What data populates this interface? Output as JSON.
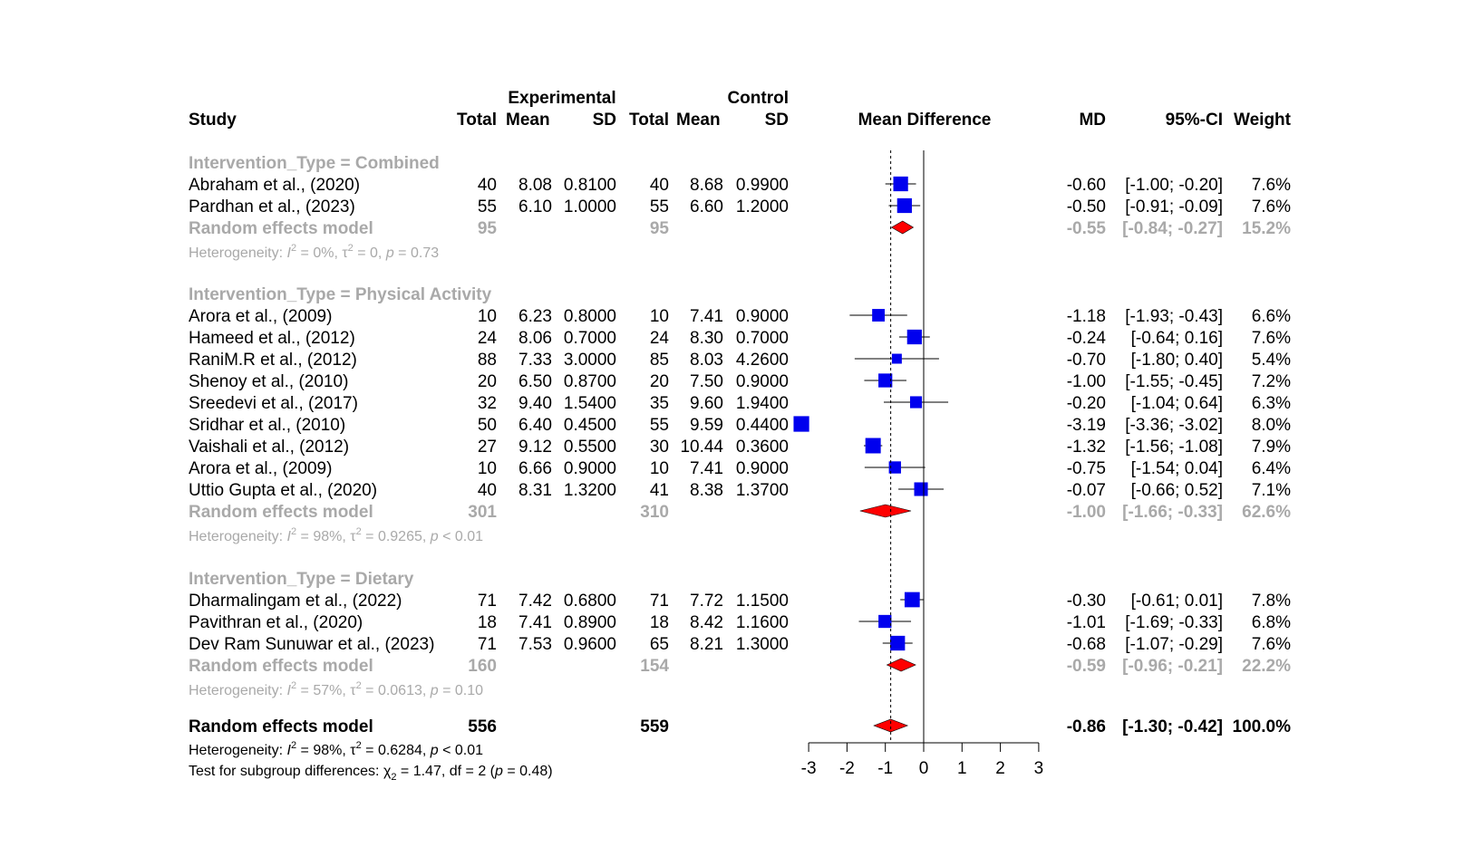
{
  "header": {
    "group_exp": "Experimental",
    "group_ctl": "Control",
    "cols": {
      "study": "Study",
      "total_e": "Total",
      "mean_e": "Mean",
      "sd_e": "SD",
      "total_c": "Total",
      "mean_c": "Mean",
      "sd_c": "SD",
      "effect": "Mean Difference",
      "md": "MD",
      "ci": "95%-CI",
      "weight": "Weight"
    }
  },
  "colors": {
    "square": "#0000ee",
    "diamond": "#ff0000",
    "subgroup_text": "#a9a9a9",
    "text": "#000000"
  },
  "chart_data": {
    "type": "forest",
    "xlim": [
      -3,
      3
    ],
    "xticks": [
      "-3",
      "-2",
      "-1",
      "0",
      "1",
      "2",
      "3"
    ],
    "null_line": 0,
    "overall_line": -0.86,
    "subgroups": [
      {
        "label": "Intervention_Type = Combined",
        "studies": [
          {
            "name": "Abraham et al., (2020)",
            "te": "40",
            "me": "8.08",
            "se": "0.8100",
            "tc": "40",
            "mc": "8.68",
            "sc": "0.9900",
            "md": -0.6,
            "lo": -1.0,
            "hi": -0.2,
            "md_text": "-0.60",
            "ci_text": "[-1.00; -0.20]",
            "w_text": "7.6%",
            "w": 7.6
          },
          {
            "name": "Pardhan et al., (2023)",
            "te": "55",
            "me": "6.10",
            "se": "1.0000",
            "tc": "55",
            "mc": "6.60",
            "sc": "1.2000",
            "md": -0.5,
            "lo": -0.91,
            "hi": -0.09,
            "md_text": "-0.50",
            "ci_text": "[-0.91; -0.09]",
            "w_text": "7.6%",
            "w": 7.6
          }
        ],
        "pooled": {
          "label": "Random effects model",
          "te": "95",
          "tc": "95",
          "md": -0.55,
          "lo": -0.84,
          "hi": -0.27,
          "md_text": "-0.55",
          "ci_text": "[-0.84; -0.27]",
          "w_text": "15.2%"
        },
        "het": {
          "prefix": "Heterogeneity: ",
          "I": "I",
          "i2_value": " = 0%, ",
          "tau": "τ",
          "tau2_value": " = 0, ",
          "p": "p",
          "p_value": " = 0.73"
        }
      },
      {
        "label": "Intervention_Type = Physical Activity",
        "studies": [
          {
            "name": "Arora et al., (2009)",
            "te": "10",
            "me": "6.23",
            "se": "0.8000",
            "tc": "10",
            "mc": "7.41",
            "sc": "0.9000",
            "md": -1.18,
            "lo": -1.93,
            "hi": -0.43,
            "md_text": "-1.18",
            "ci_text": "[-1.93; -0.43]",
            "w_text": "6.6%",
            "w": 6.6
          },
          {
            "name": "Hameed et al., (2012)",
            "te": "24",
            "me": "8.06",
            "se": "0.7000",
            "tc": "24",
            "mc": "8.30",
            "sc": "0.7000",
            "md": -0.24,
            "lo": -0.64,
            "hi": 0.16,
            "md_text": "-0.24",
            "ci_text": "[-0.64;  0.16]",
            "w_text": "7.6%",
            "w": 7.6
          },
          {
            "name": "RaniM.R et al., (2012)",
            "te": "88",
            "me": "7.33",
            "se": "3.0000",
            "tc": "85",
            "mc": "8.03",
            "sc": "4.2600",
            "md": -0.7,
            "lo": -1.8,
            "hi": 0.4,
            "md_text": "-0.70",
            "ci_text": "[-1.80;  0.40]",
            "w_text": "5.4%",
            "w": 5.4
          },
          {
            "name": "Shenoy et al., (2010)",
            "te": "20",
            "me": "6.50",
            "se": "0.8700",
            "tc": "20",
            "mc": "7.50",
            "sc": "0.9000",
            "md": -1.0,
            "lo": -1.55,
            "hi": -0.45,
            "md_text": "-1.00",
            "ci_text": "[-1.55; -0.45]",
            "w_text": "7.2%",
            "w": 7.2
          },
          {
            "name": "Sreedevi et al., (2017)",
            "te": "32",
            "me": "9.40",
            "se": "1.5400",
            "tc": "35",
            "mc": "9.60",
            "sc": "1.9400",
            "md": -0.2,
            "lo": -1.04,
            "hi": 0.64,
            "md_text": "-0.20",
            "ci_text": "[-1.04;  0.64]",
            "w_text": "6.3%",
            "w": 6.3
          },
          {
            "name": "Sridhar et al., (2010)",
            "te": "50",
            "me": "6.40",
            "se": "0.4500",
            "tc": "55",
            "mc": "9.59",
            "sc": "0.4400",
            "md": -3.19,
            "lo": -3.36,
            "hi": -3.02,
            "md_text": "-3.19",
            "ci_text": "[-3.36; -3.02]",
            "w_text": "8.0%",
            "w": 8.0
          },
          {
            "name": "Vaishali et al., (2012)",
            "te": "27",
            "me": "9.12",
            "se": "0.5500",
            "tc": "30",
            "mc": "10.44",
            "sc": "0.3600",
            "md": -1.32,
            "lo": -1.56,
            "hi": -1.08,
            "md_text": "-1.32",
            "ci_text": "[-1.56; -1.08]",
            "w_text": "7.9%",
            "w": 7.9
          },
          {
            "name": "Arora et al., (2009)",
            "te": "10",
            "me": "6.66",
            "se": "0.9000",
            "tc": "10",
            "mc": "7.41",
            "sc": "0.9000",
            "md": -0.75,
            "lo": -1.54,
            "hi": 0.04,
            "md_text": "-0.75",
            "ci_text": "[-1.54;  0.04]",
            "w_text": "6.4%",
            "w": 6.4
          },
          {
            "name": "Uttio Gupta et al., (2020)",
            "te": "40",
            "me": "8.31",
            "se": "1.3200",
            "tc": "41",
            "mc": "8.38",
            "sc": "1.3700",
            "md": -0.07,
            "lo": -0.66,
            "hi": 0.52,
            "md_text": "-0.07",
            "ci_text": "[-0.66;  0.52]",
            "w_text": "7.1%",
            "w": 7.1
          }
        ],
        "pooled": {
          "label": "Random effects model",
          "te": "301",
          "tc": "310",
          "md": -1.0,
          "lo": -1.66,
          "hi": -0.33,
          "md_text": "-1.00",
          "ci_text": "[-1.66; -0.33]",
          "w_text": "62.6%"
        },
        "het": {
          "prefix": "Heterogeneity: ",
          "I": "I",
          "i2_value": " = 98%, ",
          "tau": "τ",
          "tau2_value": " = 0.9265, ",
          "p": "p",
          "p_value": " < 0.01"
        }
      },
      {
        "label": "Intervention_Type = Dietary",
        "studies": [
          {
            "name": "Dharmalingam et al., (2022)",
            "te": "71",
            "me": "7.42",
            "se": "0.6800",
            "tc": "71",
            "mc": "7.72",
            "sc": "1.1500",
            "md": -0.3,
            "lo": -0.61,
            "hi": 0.01,
            "md_text": "-0.30",
            "ci_text": "[-0.61;  0.01]",
            "w_text": "7.8%",
            "w": 7.8
          },
          {
            "name": "Pavithran et al., (2020)",
            "te": "18",
            "me": "7.41",
            "se": "0.8900",
            "tc": "18",
            "mc": "8.42",
            "sc": "1.1600",
            "md": -1.01,
            "lo": -1.69,
            "hi": -0.33,
            "md_text": "-1.01",
            "ci_text": "[-1.69; -0.33]",
            "w_text": "6.8%",
            "w": 6.8
          },
          {
            "name": "Dev Ram Sunuwar et al., (2023)",
            "te": "71",
            "me": "7.53",
            "se": "0.9600",
            "tc": "65",
            "mc": "8.21",
            "sc": "1.3000",
            "md": -0.68,
            "lo": -1.07,
            "hi": -0.29,
            "md_text": "-0.68",
            "ci_text": "[-1.07; -0.29]",
            "w_text": "7.6%",
            "w": 7.6
          }
        ],
        "pooled": {
          "label": "Random effects model",
          "te": "160",
          "tc": "154",
          "md": -0.59,
          "lo": -0.96,
          "hi": -0.21,
          "md_text": "-0.59",
          "ci_text": "[-0.96; -0.21]",
          "w_text": "22.2%"
        },
        "het": {
          "prefix": "Heterogeneity: ",
          "I": "I",
          "i2_value": " = 57%, ",
          "tau": "τ",
          "tau2_value": " = 0.0613, ",
          "p": "p",
          "p_value": " = 0.10"
        }
      }
    ],
    "overall": {
      "label": "Random effects model",
      "te": "556",
      "tc": "559",
      "md": -0.86,
      "lo": -1.3,
      "hi": -0.42,
      "md_text": "-0.86",
      "ci_text": "[-1.30; -0.42]",
      "w_text": "100.0%",
      "het": {
        "prefix": "Heterogeneity: ",
        "I": "I",
        "i2_value": " = 98%, ",
        "tau": "τ",
        "tau2_value": " = 0.6284, ",
        "p": "p",
        "p_value": " < 0.01"
      },
      "subgroup_test": {
        "prefix": "Test for subgroup differences: ",
        "chi": "χ",
        "chi_sub": "2",
        "value": " = 1.47, df = 2 (",
        "p": "p",
        "p_value": " = 0.48)"
      }
    }
  }
}
